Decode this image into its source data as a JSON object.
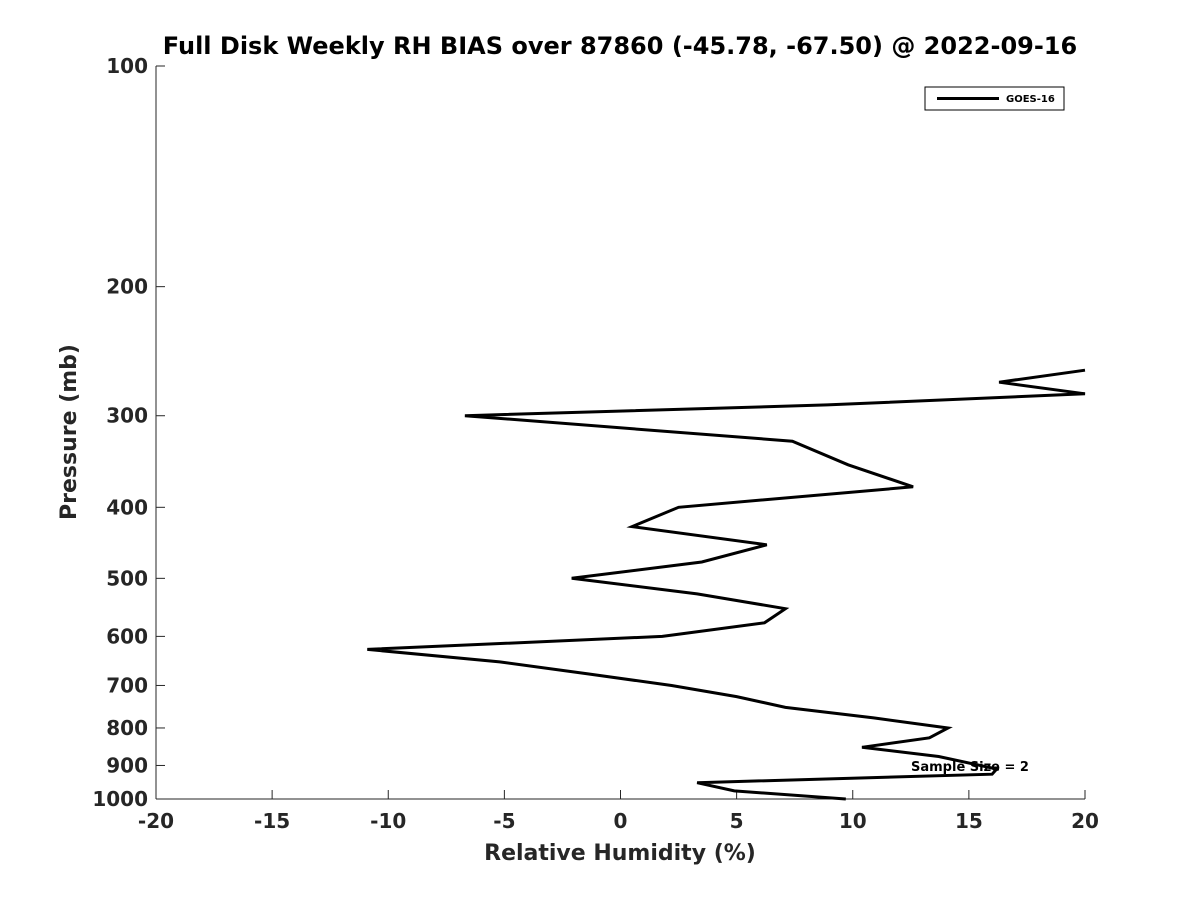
{
  "chart_data": {
    "type": "line",
    "title": "Full Disk Weekly RH BIAS over 87860 (-45.78, -67.50) @ 2022-09-16",
    "xlabel": "Relative Humidity (%)",
    "ylabel": "Pressure (mb)",
    "xlim": [
      -20,
      20
    ],
    "ylim": [
      100,
      1000
    ],
    "y_scale": "log",
    "y_reversed": true,
    "grid": false,
    "x_ticks": [
      -20,
      -15,
      -10,
      -5,
      0,
      5,
      10,
      15,
      20
    ],
    "x_tick_labels": [
      "-20",
      "-15",
      "-10",
      "-5",
      "0",
      "5",
      "10",
      "15",
      "20"
    ],
    "y_ticks": [
      100,
      200,
      300,
      400,
      500,
      600,
      700,
      800,
      900,
      1000
    ],
    "y_tick_labels": [
      "100",
      "200",
      "300",
      "400",
      "500",
      "600",
      "700",
      "800",
      "900",
      "1000"
    ],
    "legend_position": "top-right",
    "series": [
      {
        "name": "GOES-16",
        "color": "#000000",
        "x": [
          9.7,
          4.9,
          3.3,
          16.0,
          16.2,
          13.7,
          10.4,
          13.3,
          14.1,
          10.9,
          7.1,
          5.0,
          2.2,
          -1.4,
          -5.2,
          -10.9,
          1.8,
          6.2,
          7.1,
          3.3,
          -2.1,
          3.5,
          6.3,
          0.5,
          2.5,
          12.6,
          9.8,
          7.4,
          -6.7,
          8.9,
          20.0,
          16.3,
          20.0
        ],
        "y": [
          1000,
          975,
          950,
          925,
          910,
          875,
          850,
          825,
          800,
          775,
          750,
          725,
          700,
          675,
          650,
          625,
          600,
          575,
          550,
          525,
          500,
          475,
          450,
          425,
          400,
          375,
          350,
          325,
          300,
          290,
          280,
          270,
          260
        ]
      }
    ],
    "annotations": [
      "Sample Size = 2"
    ]
  }
}
